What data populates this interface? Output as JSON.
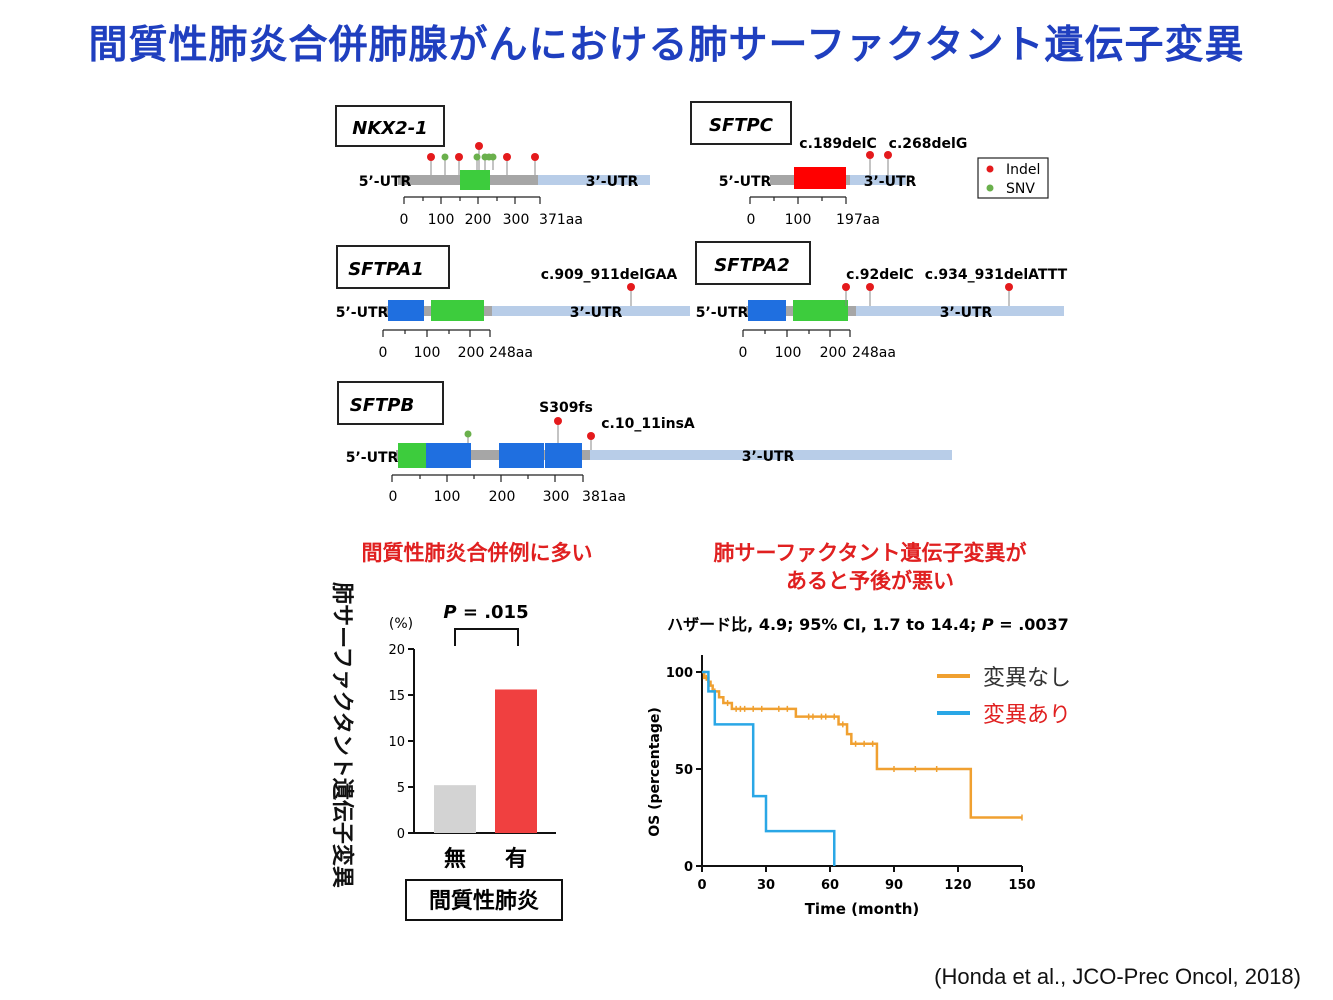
{
  "title": "間質性肺炎合併肺腺がんにおける肺サーファクタント遺伝子変異",
  "citation": "(Honda et al., JCO-Prec Oncol, 2018)",
  "genes": {
    "nkx21": {
      "name": "NKX2-1",
      "utr5": "5’-UTR",
      "utr3": "3’-UTR",
      "ticks": [
        "0",
        "100",
        "200",
        "300",
        "371aa"
      ]
    },
    "sftpc": {
      "name": "SFTPC",
      "utr5": "5’-UTR",
      "utr3": "3’-UTR",
      "ticks": [
        "0",
        "100",
        "197aa"
      ],
      "mutations": [
        "c.189delC",
        "c.268delG"
      ]
    },
    "sftpa1": {
      "name": "SFTPA1",
      "utr5": "5’-UTR",
      "utr3": "3’-UTR",
      "ticks": [
        "0",
        "100",
        "200",
        "248aa"
      ],
      "mutations": [
        "c.909_911delGAA"
      ]
    },
    "sftpa2": {
      "name": "SFTPA2",
      "utr5": "5’-UTR",
      "utr3": "3’-UTR",
      "ticks": [
        "0",
        "100",
        "200",
        "248aa"
      ],
      "mutations": [
        "c.92delC",
        "c.934_931delATTT"
      ]
    },
    "sftpb": {
      "name": "SFTPB",
      "utr5": "5’-UTR",
      "utr3": "3’-UTR",
      "ticks": [
        "0",
        "100",
        "200",
        "300",
        "381aa"
      ],
      "mutations": [
        "S309fs",
        "c.10_11insA"
      ]
    }
  },
  "legend": {
    "indel": "Indel",
    "snv": "SNV",
    "indel_color": "#e41a1c",
    "snv_color": "#6ab04c"
  },
  "bar_heading": "間質性肺炎合併例に多い",
  "km_heading_line1": "肺サーファクタント遺伝子変異が",
  "km_heading_line2": "あると予後が悪い",
  "chart_data": [
    {
      "type": "bar",
      "ylabel": "肺サーファクタント遺伝子変異",
      "yunit": "(%)",
      "xlabel": "間質性肺炎",
      "categories": [
        "無",
        "有"
      ],
      "values": [
        5.2,
        15.6
      ],
      "colors": [
        "#d3d3d3",
        "#f04040"
      ],
      "ylim": [
        0,
        20
      ],
      "yticks": [
        "0",
        "5",
        "10",
        "15",
        "20"
      ],
      "annotation_p": "P",
      "annotation_value": " = .015"
    },
    {
      "type": "line",
      "subtitle_pre": "ハザード比, 4.9; 95% CI, 1.7 to 14.4; ",
      "subtitle_p": "P",
      "subtitle_post": " = .0037",
      "xlabel": "Time (month)",
      "ylabel": "OS (percentage)",
      "xlim": [
        0,
        150
      ],
      "ylim": [
        0,
        100
      ],
      "xticks": [
        "0",
        "30",
        "60",
        "90",
        "120",
        "150"
      ],
      "yticks": [
        "0",
        "50",
        "100"
      ],
      "legend_position": "top-right",
      "series": [
        {
          "name": "変異なし",
          "color": "#f0a030",
          "label_color": "#333333",
          "x": [
            0,
            1,
            2,
            3,
            4,
            5,
            6,
            8,
            10,
            12,
            14,
            16,
            18,
            20,
            24,
            28,
            36,
            40,
            44,
            50,
            52,
            56,
            58,
            62,
            64,
            66,
            68,
            70,
            72,
            76,
            80,
            82,
            90,
            100,
            110,
            126,
            150
          ],
          "y": [
            100,
            97,
            97,
            95,
            93,
            90,
            90,
            87,
            84,
            84,
            81,
            81,
            81,
            81,
            81,
            81,
            81,
            81,
            77,
            77,
            77,
            77,
            77,
            77,
            73,
            73,
            68,
            63,
            63,
            63,
            63,
            50,
            50,
            50,
            50,
            25,
            25
          ]
        },
        {
          "name": "変異あり",
          "color": "#2aa7e6",
          "label_color": "#e02020",
          "x": [
            0,
            3,
            6,
            10,
            20,
            24,
            28,
            30,
            62
          ],
          "y": [
            100,
            90,
            73,
            73,
            73,
            36,
            36,
            18,
            0
          ]
        }
      ]
    }
  ]
}
